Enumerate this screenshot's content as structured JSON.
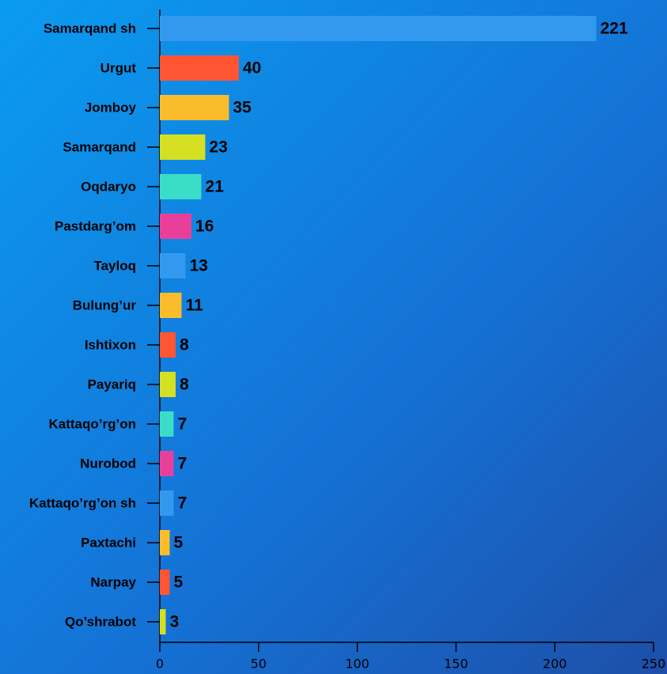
{
  "chart_data": {
    "type": "bar",
    "orientation": "horizontal",
    "categories": [
      "Samarqand sh",
      "Urgut",
      "Jomboy",
      "Samarqand",
      "Oqdaryo",
      "Pastdarg’om",
      "Tayloq",
      "Bulung’ur",
      "Ishtixon",
      "Payariq",
      "Kattaqo’rg’on",
      "Nurobod",
      "Kattaqo’rg’on sh",
      "Paxtachi",
      "Narpay",
      "Qo’shrabot"
    ],
    "values": [
      221,
      40,
      35,
      23,
      21,
      16,
      13,
      11,
      8,
      8,
      7,
      7,
      7,
      5,
      5,
      3
    ],
    "colors": [
      "#3399ee",
      "#ff5533",
      "#fbbc2c",
      "#d4e021",
      "#3bdcc8",
      "#e8409a",
      "#3399ee",
      "#fbbc2c",
      "#ff5533",
      "#d4e021",
      "#3bdcc8",
      "#e8409a",
      "#3399ee",
      "#fbbc2c",
      "#ff5533",
      "#d4e021"
    ],
    "xlim": [
      0,
      250
    ],
    "xticks": [
      0,
      50,
      100,
      150,
      200,
      250
    ],
    "grid": false
  }
}
